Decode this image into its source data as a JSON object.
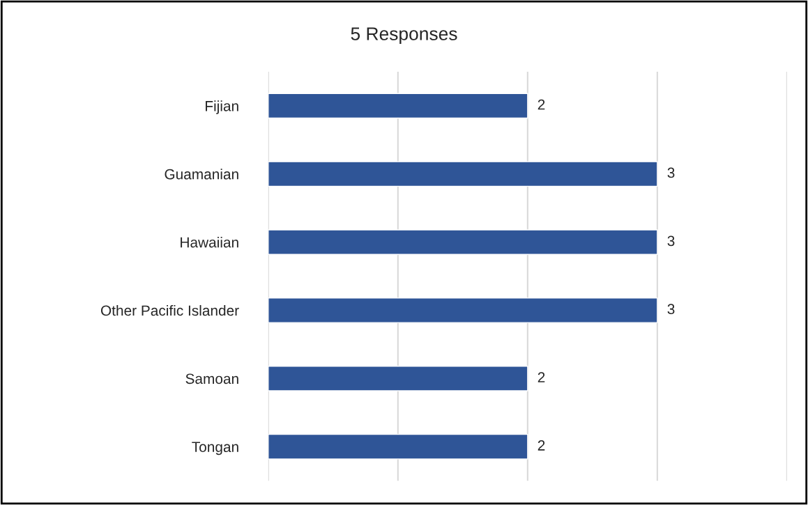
{
  "chart_data": {
    "type": "bar",
    "orientation": "horizontal",
    "title": "5 Responses",
    "categories": [
      "Fijian",
      "Guamanian",
      "Hawaiian",
      "Other Pacific Islander",
      "Samoan",
      "Tongan"
    ],
    "values": [
      2,
      3,
      3,
      3,
      2,
      2
    ],
    "color": "#2f5597",
    "xlim": [
      0,
      4
    ],
    "xticks": [
      {
        "value": 0,
        "label": null
      },
      {
        "value": 1,
        "label": null
      },
      {
        "value": 2,
        "label": null
      },
      {
        "value": 3,
        "label": null
      },
      {
        "value": 4,
        "label": null
      }
    ],
    "tick_labels": "y",
    "grid": "x",
    "data_labels": true,
    "legend": false
  }
}
